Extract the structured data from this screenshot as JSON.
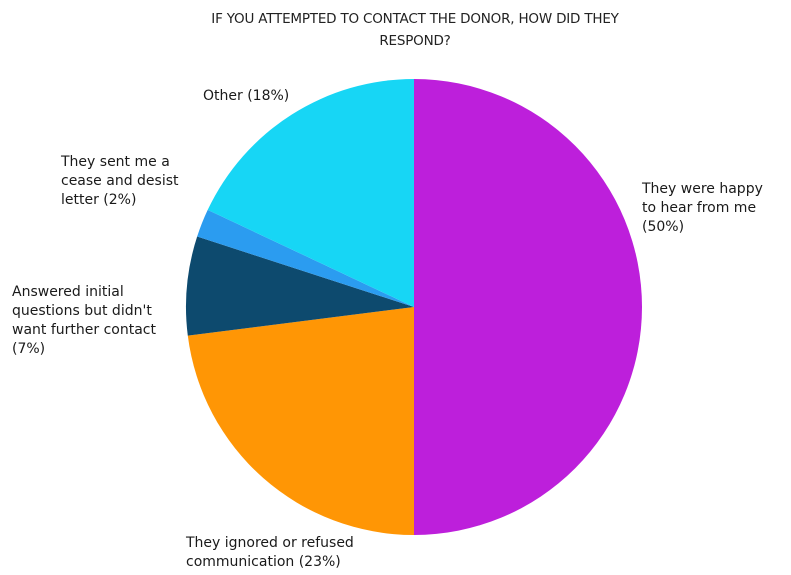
{
  "chart_data": {
    "type": "pie",
    "title": "IF YOU ATTEMPTED TO CONTACT THE DONOR, HOW DID THEY RESPOND?",
    "start_angle_deg": 0,
    "direction": "clockwise",
    "legend": "none",
    "slices": [
      {
        "label": "They were happy to hear from me",
        "value": 50,
        "value_text": "(50%)",
        "color": "#bd1fdb"
      },
      {
        "label": "They ignored or refused communication",
        "value": 23,
        "value_text": "(23%)",
        "color": "#ff9605"
      },
      {
        "label": "Answered initial questions but didn't want further contact",
        "value": 7,
        "value_text": "(7%)",
        "color": "#0d4a6e"
      },
      {
        "label": "They sent me a cease and desist letter",
        "value": 2,
        "value_text": "(2%)",
        "color": "#2b9cf0"
      },
      {
        "label": "Other",
        "value": 18,
        "value_text": "(18%)",
        "color": "#17d6f5"
      }
    ],
    "label_lines": [
      [
        "They were happy",
        "to hear from me",
        "(50%)"
      ],
      [
        "They ignored or refused",
        "communication (23%)"
      ],
      [
        "Answered initial",
        "questions but didn't",
        "want further contact",
        "(7%)"
      ],
      [
        "They sent me a",
        "cease and desist",
        "letter (2%)"
      ],
      [
        "Other (18%)"
      ]
    ]
  }
}
